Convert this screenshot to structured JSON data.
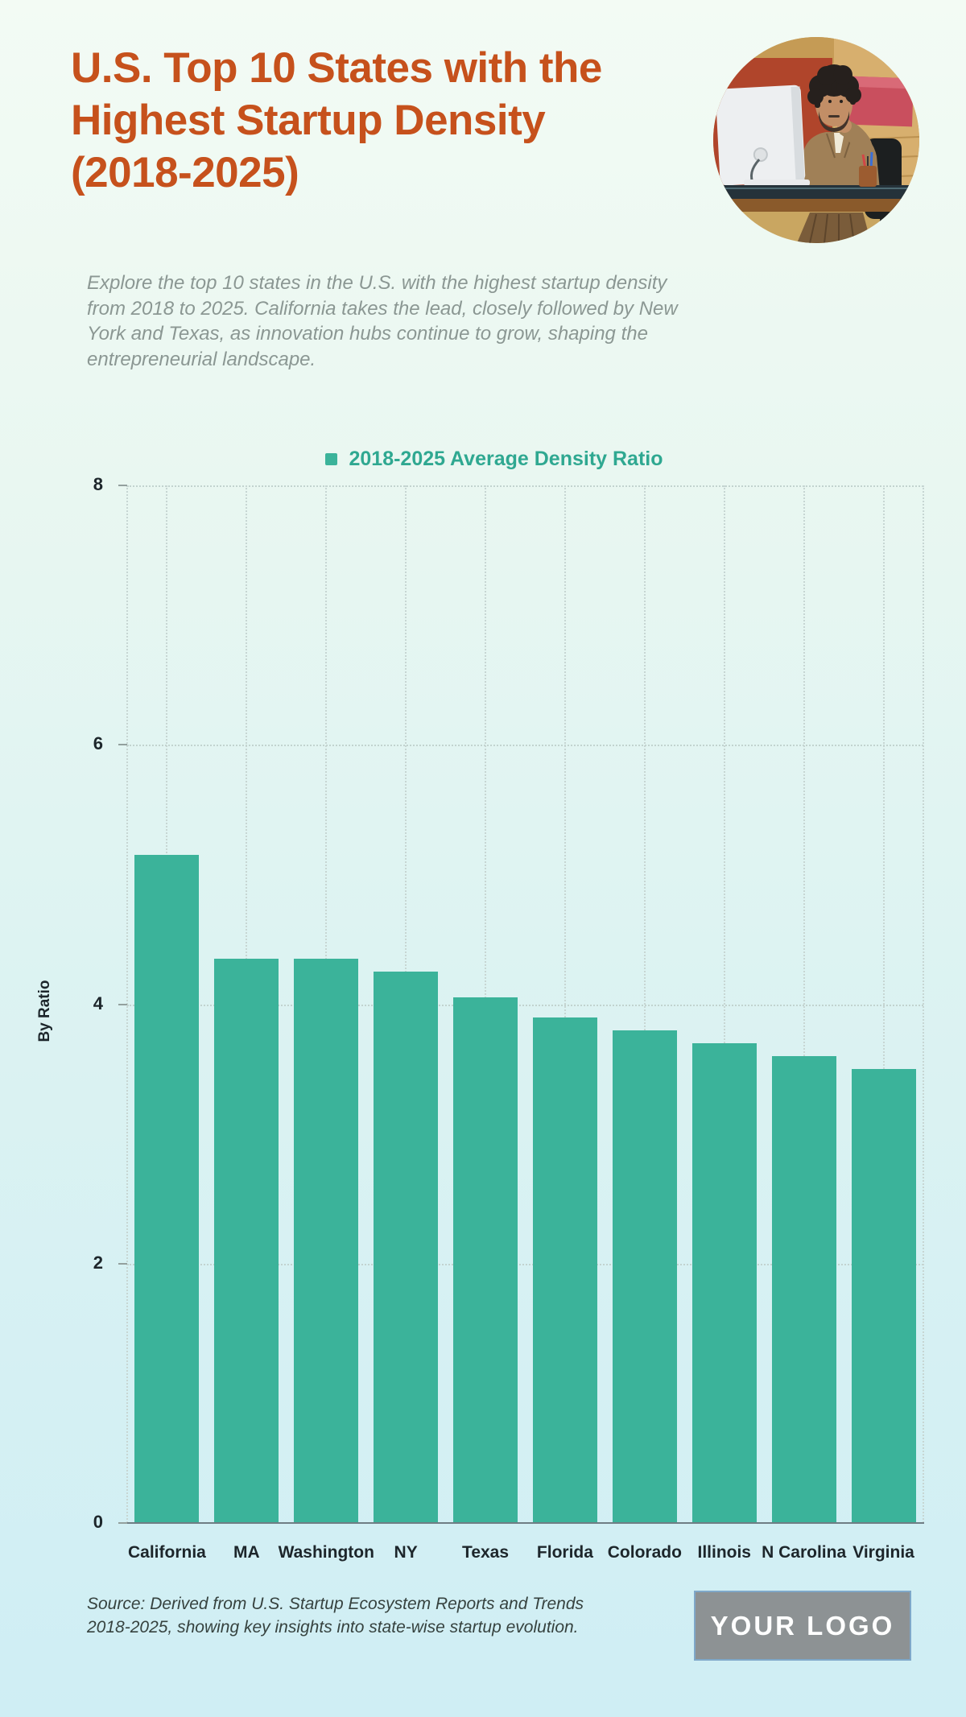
{
  "page": {
    "title": "U.S. Top 10 States with the Highest Startup Density (2018-2025)",
    "description": "Explore the top 10 states in the U.S. with the highest startup density from 2018 to 2025. California takes the lead, closely followed by New York and Texas, as innovation hubs continue to grow, shaping the entrepreneurial landscape.",
    "source_note": "Source: Derived from U.S. Startup Ecosystem Reports and Trends 2018-2025, showing key insights into state-wise startup evolution.",
    "logo_text": "YOUR LOGO"
  },
  "colors": {
    "title": "#c6511c",
    "bar": "#3bb39a",
    "legend_text": "#2fa891",
    "background_top": "#f3fbf4",
    "background_bottom": "#cfeef4",
    "axis_label": "#1d262b",
    "description_text": "#8b9793",
    "source_text": "#36423f",
    "logo_background": "#8d9294",
    "logo_border": "#7fa8c9",
    "gridline": "#c2d3cf",
    "axis_line": "#6f7d84"
  },
  "chart_data": {
    "type": "bar",
    "legend": "2018-2025 Average Density Ratio",
    "categories": [
      "California",
      "MA",
      "Washington",
      "NY",
      "Texas",
      "Florida",
      "Colorado",
      "Illinois",
      "N Carolina",
      "Virginia"
    ],
    "values": [
      5.15,
      4.35,
      4.35,
      4.25,
      4.05,
      3.9,
      3.8,
      3.7,
      3.6,
      3.5
    ],
    "ylabel": "By Ratio",
    "yticks": [
      0,
      2,
      4,
      6,
      8
    ],
    "ylim": [
      0,
      8
    ],
    "grid": "dotted",
    "legend_position": "top-center",
    "bar_color": "#3bb39a"
  }
}
